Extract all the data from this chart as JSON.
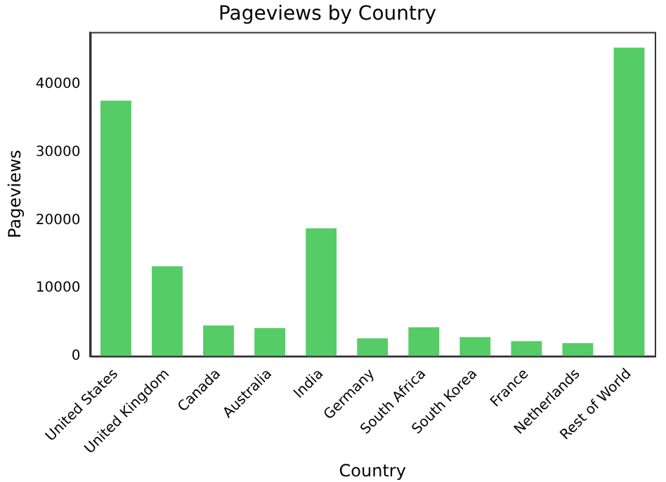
{
  "chart_data": {
    "type": "bar",
    "title": "Pageviews by Country",
    "xlabel": "Country",
    "ylabel": "Pageviews",
    "categories": [
      "United States",
      "United Kingdom",
      "Canada",
      "Australia",
      "India",
      "Germany",
      "South Africa",
      "South Korea",
      "France",
      "Netherlands",
      "Rest of World"
    ],
    "values": [
      37600,
      13200,
      4500,
      4100,
      18800,
      2600,
      4250,
      2800,
      2200,
      1900,
      45400
    ],
    "color": "#55cc66",
    "ylim": [
      0,
      47700
    ],
    "yticks": [
      0,
      10000,
      20000,
      30000,
      40000
    ],
    "grid": false,
    "legend": false
  }
}
